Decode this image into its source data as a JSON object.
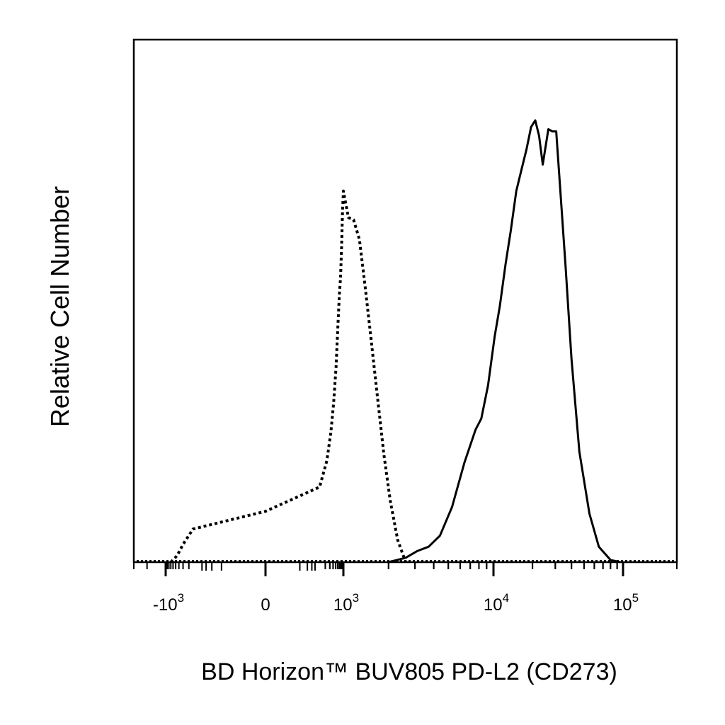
{
  "chart_data": {
    "type": "line",
    "title": "",
    "xlabel": "BD Horizon™ BUV805 PD-L2 (CD273)",
    "ylabel": "Relative Cell Number",
    "x_scale": "biexponential",
    "xlim": [
      -2000,
      200000
    ],
    "ylim": [
      0,
      100
    ],
    "grid": false,
    "legend": "none",
    "x_ticks": [
      {
        "value": -1000,
        "base": "-10",
        "exp": "3"
      },
      {
        "value": 0,
        "base": "0",
        "exp": ""
      },
      {
        "value": 1000,
        "base": "10",
        "exp": "3"
      },
      {
        "value": 10000,
        "base": "10",
        "exp": "4"
      },
      {
        "value": 100000,
        "base": "10",
        "exp": "5"
      }
    ],
    "series": [
      {
        "style": "dotted",
        "color": "#000000",
        "x": [
          -700,
          -450,
          -300,
          -150,
          0,
          120,
          230,
          330,
          420,
          520,
          620,
          700,
          780,
          860,
          930,
          1000,
          1080,
          1170,
          1280,
          1400,
          1530,
          1680,
          1860,
          2050,
          2300,
          2600
        ],
        "y": [
          0,
          1.5,
          4,
          7.5,
          11.5,
          17,
          23,
          29.5,
          36,
          44,
          54,
          60.5,
          64.5,
          72,
          79.5,
          84,
          78,
          77.5,
          73,
          62,
          50.5,
          38,
          24.5,
          14,
          5,
          0
        ]
      },
      {
        "style": "solid",
        "color": "#000000",
        "x": [
          2000,
          2600,
          3100,
          3700,
          4400,
          5300,
          6400,
          7600,
          8300,
          9200,
          10200,
          11200,
          12400,
          13600,
          15000,
          16500,
          18000,
          19500,
          21000,
          22500,
          24000,
          26500,
          28500,
          30500,
          33000,
          36000,
          40000,
          46000,
          55000,
          65000,
          80000,
          95000
        ],
        "y": [
          0,
          1,
          2.5,
          3.5,
          6,
          12.5,
          22.5,
          30,
          32.5,
          40,
          51,
          58,
          67.5,
          75,
          84,
          89,
          93.5,
          98.5,
          100,
          96.5,
          90,
          98,
          97.5,
          97.5,
          83,
          67,
          46,
          25,
          11,
          3.5,
          0.5,
          0
        ]
      }
    ]
  }
}
